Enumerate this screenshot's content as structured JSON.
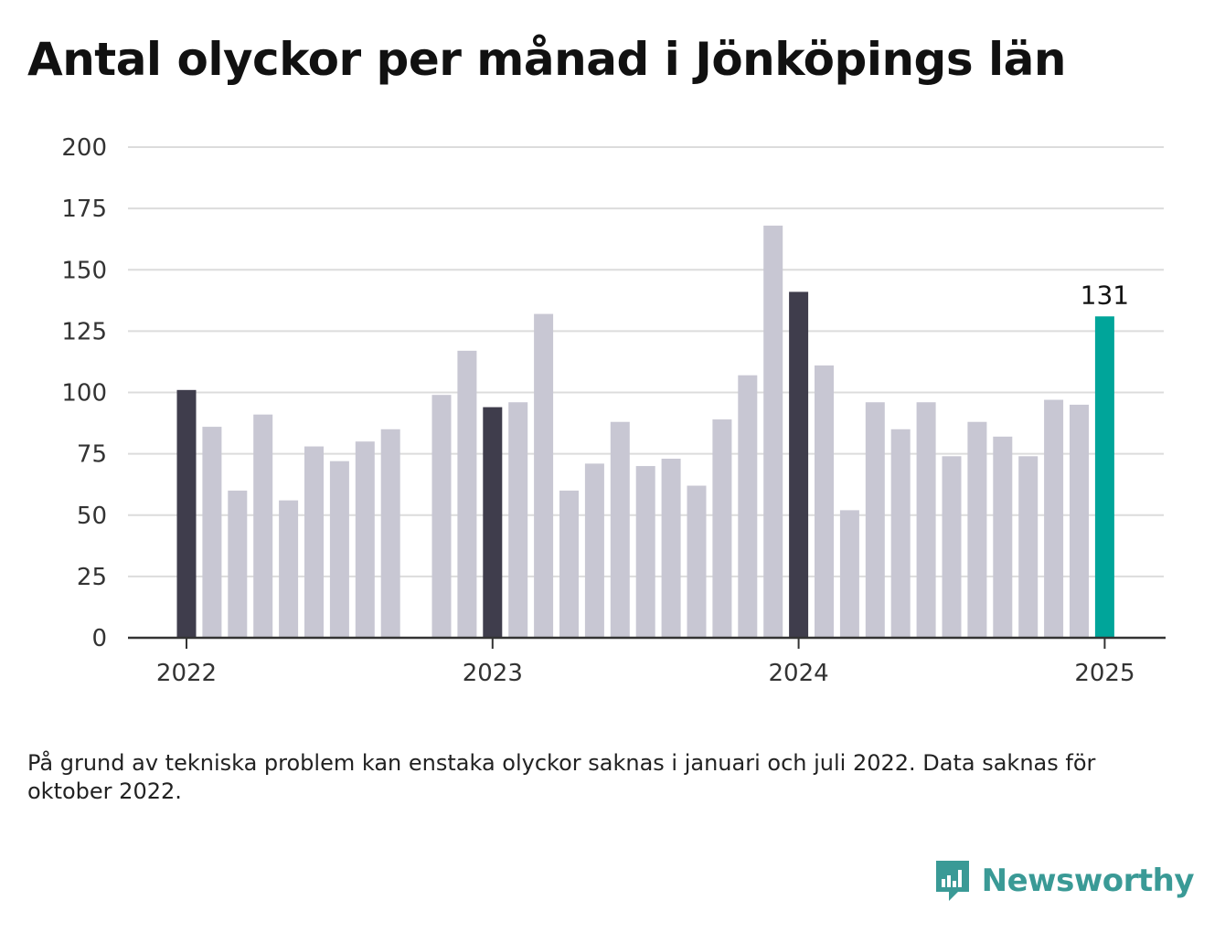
{
  "title": "Antal olyckor per månad i Jönköpings län",
  "note": "På grund av tekniska problem kan enstaka olyckor saknas i januari och juli 2022. Data saknas för oktober 2022.",
  "brand": {
    "name": "Newsworthy",
    "icon": "newsworthy-logo-icon"
  },
  "colors": {
    "highlight": "#000000",
    "regular": "#c8c7d3",
    "january": "#3f3d4c",
    "latest": "#00a59a"
  },
  "chart_data": {
    "type": "bar",
    "title": "Antal olyckor per månad i Jönköpings län",
    "xlabel": "",
    "ylabel": "",
    "ylim": [
      0,
      200
    ],
    "yticks": [
      0,
      25,
      50,
      75,
      100,
      125,
      150,
      175,
      200
    ],
    "xticks": [
      "2022",
      "2023",
      "2024",
      "2025"
    ],
    "grid": true,
    "categories": [
      "2022-01",
      "2022-02",
      "2022-03",
      "2022-04",
      "2022-05",
      "2022-06",
      "2022-07",
      "2022-08",
      "2022-09",
      "2022-10",
      "2022-11",
      "2022-12",
      "2023-01",
      "2023-02",
      "2023-03",
      "2023-04",
      "2023-05",
      "2023-06",
      "2023-07",
      "2023-08",
      "2023-09",
      "2023-10",
      "2023-11",
      "2023-12",
      "2024-01",
      "2024-02",
      "2024-03",
      "2024-04",
      "2024-05",
      "2024-06",
      "2024-07",
      "2024-08",
      "2024-09",
      "2024-10",
      "2024-11",
      "2024-12",
      "2025-01"
    ],
    "values": [
      101,
      86,
      60,
      91,
      56,
      78,
      72,
      80,
      85,
      null,
      99,
      117,
      94,
      96,
      132,
      60,
      71,
      88,
      70,
      73,
      62,
      89,
      107,
      168,
      141,
      111,
      52,
      96,
      85,
      96,
      74,
      88,
      82,
      74,
      97,
      95,
      131
    ],
    "annotations": [
      {
        "category": "2025-01",
        "label": "131"
      }
    ]
  }
}
